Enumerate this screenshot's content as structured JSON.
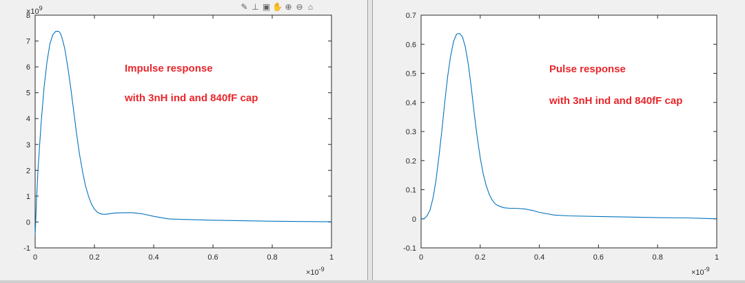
{
  "toolbar": {
    "icons": [
      "brush-icon",
      "datatip-icon",
      "zoom-axes-icon",
      "pan-hand-icon",
      "zoom-in-icon",
      "zoom-out-icon",
      "home-icon"
    ]
  },
  "colors": {
    "line": "#0072bd",
    "annotation": "#e8262b",
    "axis": "#262626"
  },
  "chart_data": [
    {
      "type": "line",
      "title": "",
      "xlabel": "",
      "ylabel": "",
      "x_exponent": "×10",
      "x_exponent_power": "-9",
      "y_exponent": "×10",
      "y_exponent_power": "9",
      "xlim": [
        0,
        1
      ],
      "ylim": [
        -1,
        8
      ],
      "xticks": [
        "0",
        "0.2",
        "0.4",
        "0.6",
        "0.8",
        "1"
      ],
      "xtick_values": [
        0,
        0.2,
        0.4,
        0.6,
        0.8,
        1
      ],
      "yticks": [
        "-1",
        "0",
        "1",
        "2",
        "3",
        "4",
        "5",
        "6",
        "7",
        "8"
      ],
      "ytick_values": [
        -1,
        0,
        1,
        2,
        3,
        4,
        5,
        6,
        7,
        8
      ],
      "annotations": [
        "Impulse response",
        "with 3nH ind and 840fF cap"
      ],
      "series": [
        {
          "x": [
            0,
            0.005,
            0.01,
            0.02,
            0.03,
            0.04,
            0.05,
            0.06,
            0.07,
            0.08,
            0.085,
            0.09,
            0.1,
            0.11,
            0.12,
            0.13,
            0.14,
            0.15,
            0.16,
            0.17,
            0.18,
            0.19,
            0.2,
            0.21,
            0.22,
            0.23,
            0.24,
            0.25,
            0.27,
            0.3,
            0.33,
            0.36,
            0.4,
            0.45,
            0.5,
            0.6,
            0.7,
            0.8,
            0.9,
            1.0
          ],
          "y": [
            -0.5,
            0.9,
            2.1,
            3.8,
            5.2,
            6.2,
            6.9,
            7.25,
            7.38,
            7.37,
            7.3,
            7.15,
            6.7,
            6.0,
            5.2,
            4.3,
            3.4,
            2.6,
            1.95,
            1.4,
            1.0,
            0.7,
            0.5,
            0.38,
            0.32,
            0.3,
            0.3,
            0.32,
            0.35,
            0.36,
            0.36,
            0.32,
            0.22,
            0.12,
            0.1,
            0.07,
            0.05,
            0.03,
            0.02,
            0.01
          ]
        }
      ]
    },
    {
      "type": "line",
      "title": "",
      "xlabel": "",
      "ylabel": "",
      "x_exponent": "×10",
      "x_exponent_power": "-9",
      "xlim": [
        0,
        1
      ],
      "ylim": [
        -0.1,
        0.7
      ],
      "xticks": [
        "0",
        "0.2",
        "0.4",
        "0.6",
        "0.8",
        "1"
      ],
      "xtick_values": [
        0,
        0.2,
        0.4,
        0.6,
        0.8,
        1
      ],
      "yticks": [
        "-0.1",
        "0",
        "0.1",
        "0.2",
        "0.3",
        "0.4",
        "0.5",
        "0.6",
        "0.7"
      ],
      "ytick_values": [
        -0.1,
        0,
        0.1,
        0.2,
        0.3,
        0.4,
        0.5,
        0.6,
        0.7
      ],
      "annotations": [
        "Pulse response",
        "with 3nH ind and 840fF cap"
      ],
      "series": [
        {
          "x": [
            0,
            0.01,
            0.02,
            0.03,
            0.04,
            0.05,
            0.06,
            0.07,
            0.08,
            0.09,
            0.1,
            0.11,
            0.12,
            0.13,
            0.14,
            0.15,
            0.16,
            0.17,
            0.18,
            0.19,
            0.2,
            0.21,
            0.22,
            0.23,
            0.24,
            0.25,
            0.26,
            0.28,
            0.3,
            0.32,
            0.35,
            0.38,
            0.4,
            0.45,
            0.5,
            0.6,
            0.7,
            0.8,
            0.9,
            1.0
          ],
          "y": [
            0,
            0.0,
            0.01,
            0.03,
            0.07,
            0.13,
            0.21,
            0.3,
            0.4,
            0.49,
            0.56,
            0.61,
            0.635,
            0.637,
            0.625,
            0.59,
            0.53,
            0.45,
            0.36,
            0.28,
            0.21,
            0.155,
            0.115,
            0.085,
            0.065,
            0.052,
            0.045,
            0.038,
            0.036,
            0.036,
            0.034,
            0.028,
            0.022,
            0.013,
            0.01,
            0.008,
            0.006,
            0.004,
            0.003,
            0.0
          ]
        }
      ]
    }
  ]
}
